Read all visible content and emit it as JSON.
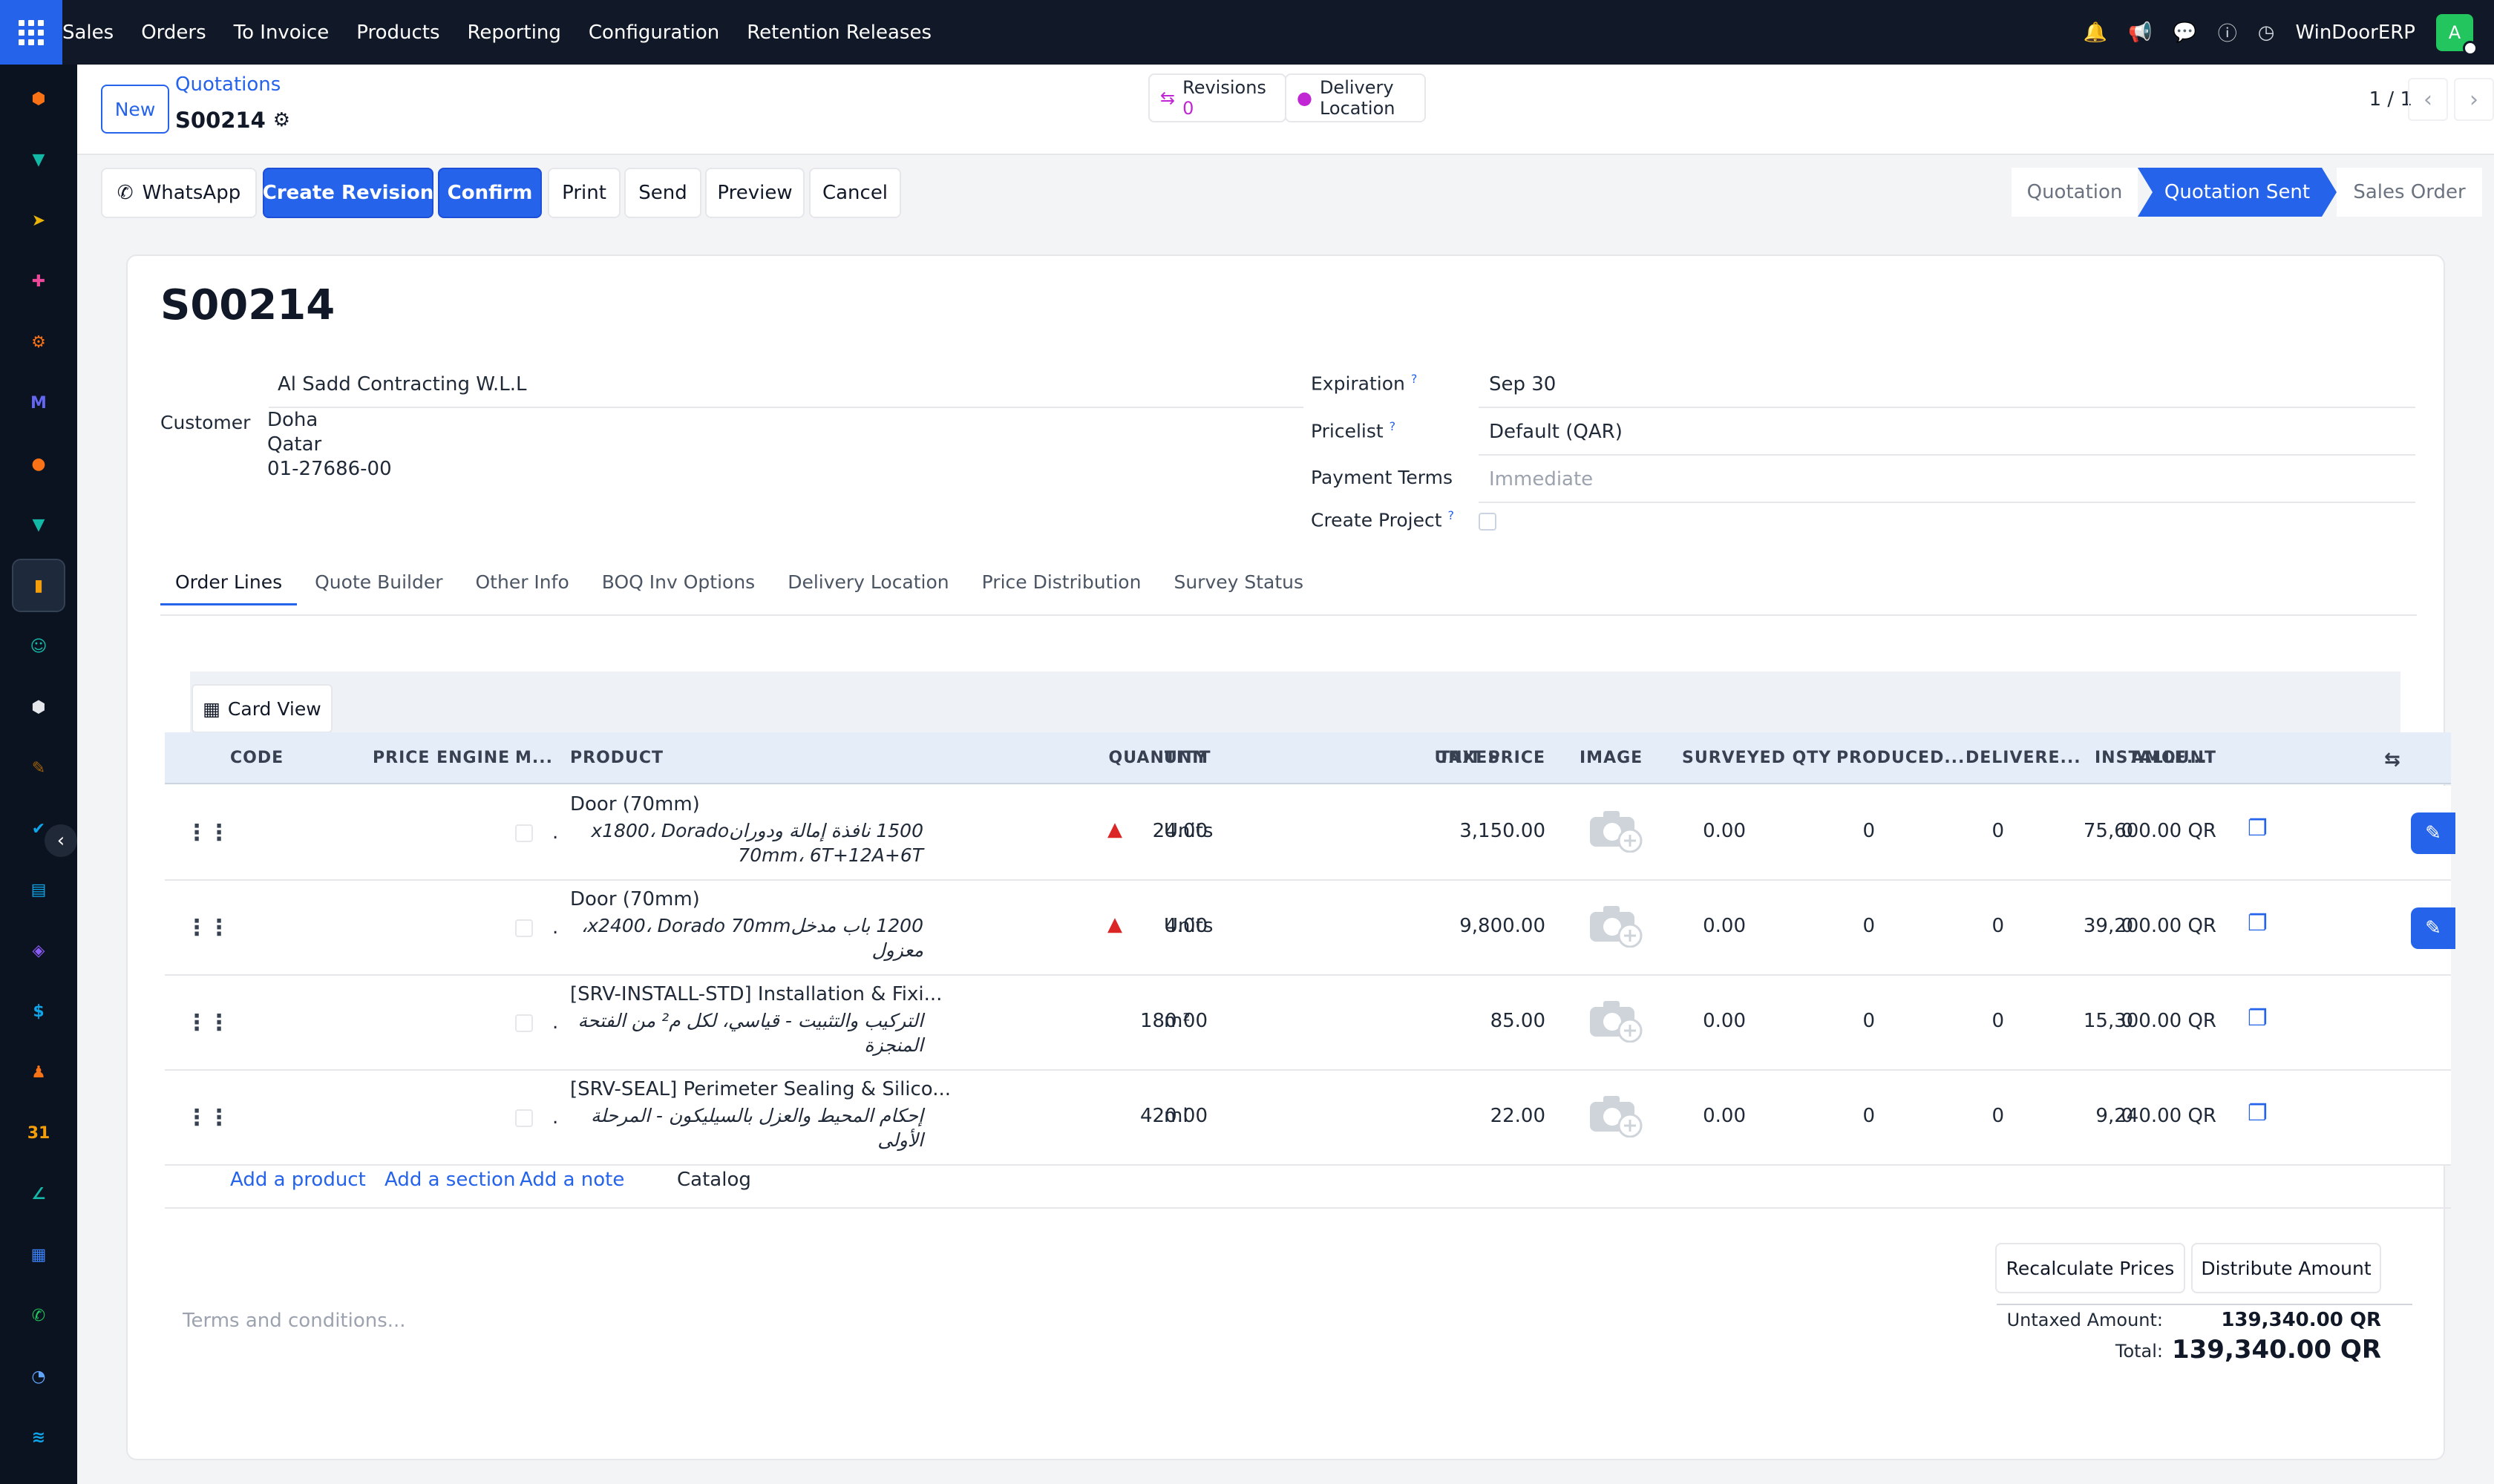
{
  "topbar": {
    "menu": [
      "Sales",
      "Orders",
      "To Invoice",
      "Products",
      "Reporting",
      "Configuration",
      "Retention Releases"
    ],
    "company": "WinDoorERP",
    "avatar_letter": "A",
    "icons": [
      "bell-icon",
      "megaphone-icon",
      "chat-icon",
      "help-icon",
      "clock-icon"
    ]
  },
  "sidebar": {
    "apps": [
      {
        "name": "hexagon-app-icon",
        "color": "#f97316",
        "glyph": "⬢"
      },
      {
        "name": "ribbon-app-icon",
        "color": "#14b8a6",
        "glyph": "▼"
      },
      {
        "name": "paper-plane-app-icon",
        "color": "#eab308",
        "glyph": "➤"
      },
      {
        "name": "pinwheel-app-icon",
        "color": "#ec4899",
        "glyph": "✚"
      },
      {
        "name": "gear-cube-app-icon",
        "color": "#f97316",
        "glyph": "⚙"
      },
      {
        "name": "mail-app-icon",
        "color": "#6366f1",
        "glyph": "M"
      },
      {
        "name": "bubble-app-icon",
        "color": "#f97316",
        "glyph": "●"
      },
      {
        "name": "ribbon2-app-icon",
        "color": "#14b8a6",
        "glyph": "▼"
      },
      {
        "name": "sales-chart-app-icon",
        "color": "#f59e0b",
        "glyph": "▮"
      },
      {
        "name": "contacts-app-icon",
        "color": "#14b8a6",
        "glyph": "☺"
      },
      {
        "name": "cube-app-icon",
        "color": "#e5e7eb",
        "glyph": "⬢"
      },
      {
        "name": "brush-app-icon",
        "color": "#a16207",
        "glyph": "✎"
      },
      {
        "name": "check-app-icon",
        "color": "#0ea5e9",
        "glyph": "✔"
      },
      {
        "name": "book-app-icon",
        "color": "#0ea5e9",
        "glyph": "▤"
      },
      {
        "name": "box-app-icon",
        "color": "#8b5cf6",
        "glyph": "◈"
      },
      {
        "name": "dollar-app-icon",
        "color": "#0ea5e9",
        "glyph": "$"
      },
      {
        "name": "people-app-icon",
        "color": "#f97316",
        "glyph": "♟"
      },
      {
        "name": "calendar-app-icon",
        "color": "#f59e0b",
        "glyph": "31"
      },
      {
        "name": "pen-app-icon",
        "color": "#14b8a6",
        "glyph": "∠"
      },
      {
        "name": "dashboard-app-icon",
        "color": "#3b82f6",
        "glyph": "▦"
      },
      {
        "name": "whatsapp-app-icon",
        "color": "#22c55e",
        "glyph": "✆"
      },
      {
        "name": "gauge-app-icon",
        "color": "#60a5fa",
        "glyph": "◔"
      },
      {
        "name": "wave-app-icon",
        "color": "#0ea5e9",
        "glyph": "≋"
      }
    ]
  },
  "control_panel": {
    "new_label": "New",
    "breadcrumb": "Quotations",
    "current": "S00214",
    "revisions_label": "Revisions",
    "revisions_count": "0",
    "delivery_label_1": "Delivery",
    "delivery_label_2": "Location",
    "pager": "1 / 1"
  },
  "actions": {
    "whatsapp": "WhatsApp",
    "create_revision": "Create Revision",
    "confirm": "Confirm",
    "print": "Print",
    "send": "Send",
    "preview": "Preview",
    "cancel": "Cancel"
  },
  "statusbar": {
    "stages": [
      "Quotation",
      "Quotation Sent",
      "Sales Order"
    ],
    "current": "Quotation Sent"
  },
  "form": {
    "title": "S00214",
    "customer_label": "Customer",
    "customer_name": "Al Sadd Contracting W.L.L",
    "customer_address": [
      "Doha",
      "Qatar",
      "01-27686-00"
    ],
    "expiration_label": "Expiration",
    "expiration_value": "Sep 30",
    "pricelist_label": "Pricelist",
    "pricelist_value": "Default (QAR)",
    "payment_terms_label": "Payment Terms",
    "payment_terms_placeholder": "Immediate",
    "create_project_label": "Create Project",
    "help_mark": "?"
  },
  "tabs": [
    "Order Lines",
    "Quote Builder",
    "Other Info",
    "BOQ Inv Options",
    "Delivery Location",
    "Price Distribution",
    "Survey Status"
  ],
  "order_lines": {
    "card_view_label": "Card View",
    "columns": {
      "code": "CODE",
      "price_engine": "PRICE ENGINE",
      "m": "M...",
      "product": "PRODUCT",
      "quantity": "QUANTITY",
      "unit": "UNIT",
      "unit_price": "UNIT PRICE",
      "taxes": "TAXES",
      "image": "IMAGE",
      "surveyed_qty": "SURVEYED QTY",
      "produced": "PRODUCED...",
      "delivered": "DELIVERE...",
      "installed": "INSTALLE...",
      "amount": "AMOUNT"
    },
    "rows": [
      {
        "product": "Door (70mm)",
        "m": ".",
        "description": "1500 نافذة إمالة ودورانx1800، Dorado 70mm، 6T+12A+6T",
        "quantity": "24.00",
        "unit": "Units",
        "unit_price": "3,150.00",
        "surveyed": "0.00",
        "produced": "0",
        "delivered": "0",
        "installed": "0",
        "amount": "75,600.00 QR",
        "trend": true,
        "edit": true
      },
      {
        "product": "Door (70mm)",
        "m": ".",
        "description": "1200 باب مدخلx2400، Dorado 70mm، معزول",
        "quantity": "4.00",
        "unit": "Units",
        "unit_price": "9,800.00",
        "surveyed": "0.00",
        "produced": "0",
        "delivered": "0",
        "installed": "0",
        "amount": "39,200.00 QR",
        "trend": true,
        "edit": true
      },
      {
        "product": "[SRV-INSTALL-STD] Installation & Fixi...",
        "m": ".",
        "description": "التركيب والتثبيت - قياسي، لكل م² من الفتحة المنجزة",
        "quantity": "180.00",
        "unit": "m²",
        "unit_price": "85.00",
        "surveyed": "0.00",
        "produced": "0",
        "delivered": "0",
        "installed": "0",
        "amount": "15,300.00 QR",
        "trend": false,
        "edit": false
      },
      {
        "product": "[SRV-SEAL] Perimeter Sealing & Silico...",
        "m": ".",
        "description": "إحكام المحيط والعزل بالسيليكون - المرحلة الأولى",
        "quantity": "420.00",
        "unit": "ml",
        "unit_price": "22.00",
        "surveyed": "0.00",
        "produced": "0",
        "delivered": "0",
        "installed": "0",
        "amount": "9,240.00 QR",
        "trend": false,
        "edit": false
      }
    ],
    "add_product": "Add a product",
    "add_section": "Add a section",
    "add_note": "Add a note",
    "catalog": "Catalog"
  },
  "footer": {
    "terms_placeholder": "Terms and conditions...",
    "recalculate": "Recalculate Prices",
    "distribute": "Distribute Amount",
    "untaxed_label": "Untaxed Amount:",
    "untaxed_value": "139,340.00 QR",
    "total_label": "Total:",
    "total_value": "139,340.00 QR"
  }
}
